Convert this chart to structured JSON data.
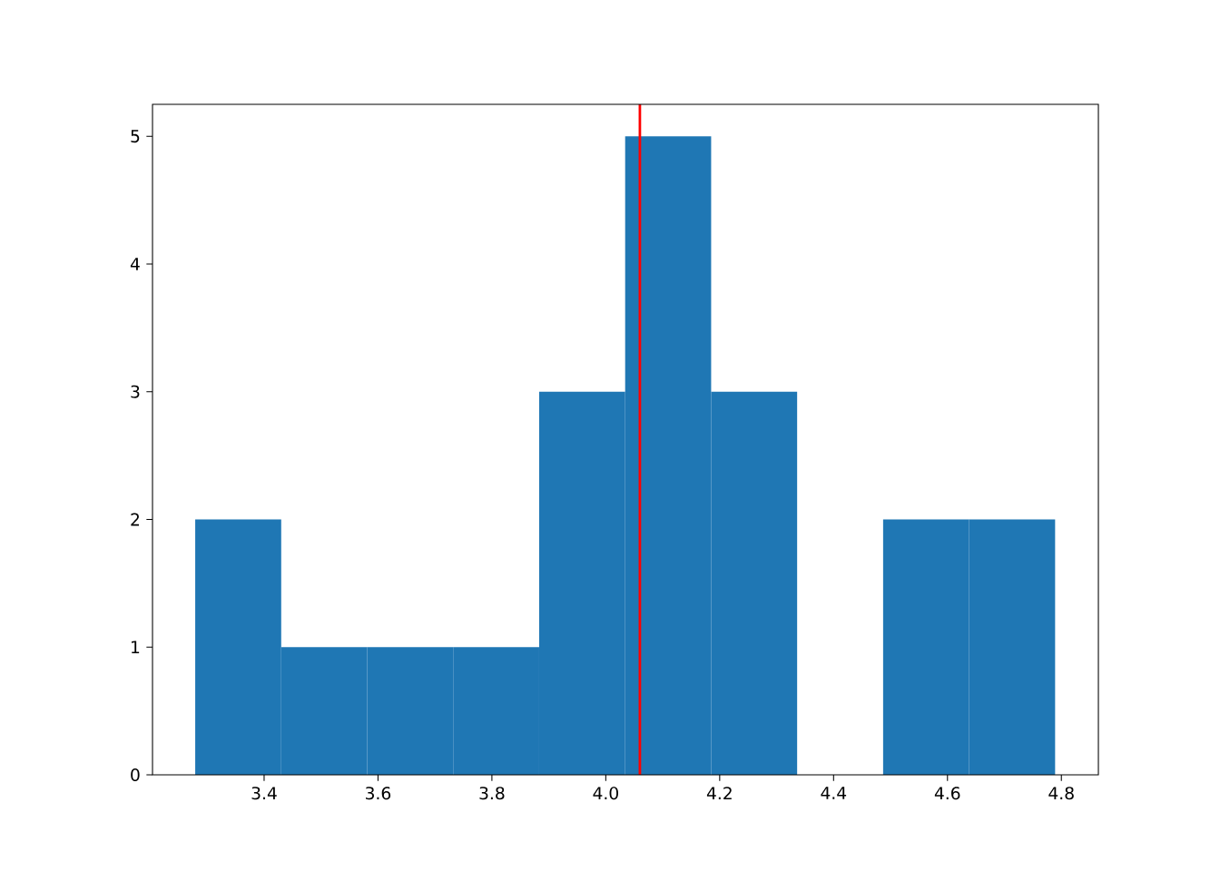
{
  "chart_data": {
    "type": "histogram",
    "bins": [
      3.279,
      3.43,
      3.581,
      3.732,
      3.883,
      4.034,
      4.185,
      4.336,
      4.487,
      4.638,
      4.789
    ],
    "values": [
      2,
      1,
      1,
      1,
      3,
      5,
      3,
      0,
      2,
      2
    ],
    "color": "#1f77b4",
    "xlim": [
      3.204,
      4.865
    ],
    "ylim": [
      0,
      5.25
    ],
    "xticks": [
      3.4,
      3.6,
      3.8,
      {
        "value": 4,
        "label": "4.0"
      },
      4.2,
      4.4,
      4.6,
      4.8
    ],
    "yticks": [
      0,
      1,
      2,
      3,
      4,
      5
    ],
    "ref_lines": [
      {
        "axis": "x",
        "value": 4.06,
        "color": "#ff0000"
      }
    ]
  }
}
